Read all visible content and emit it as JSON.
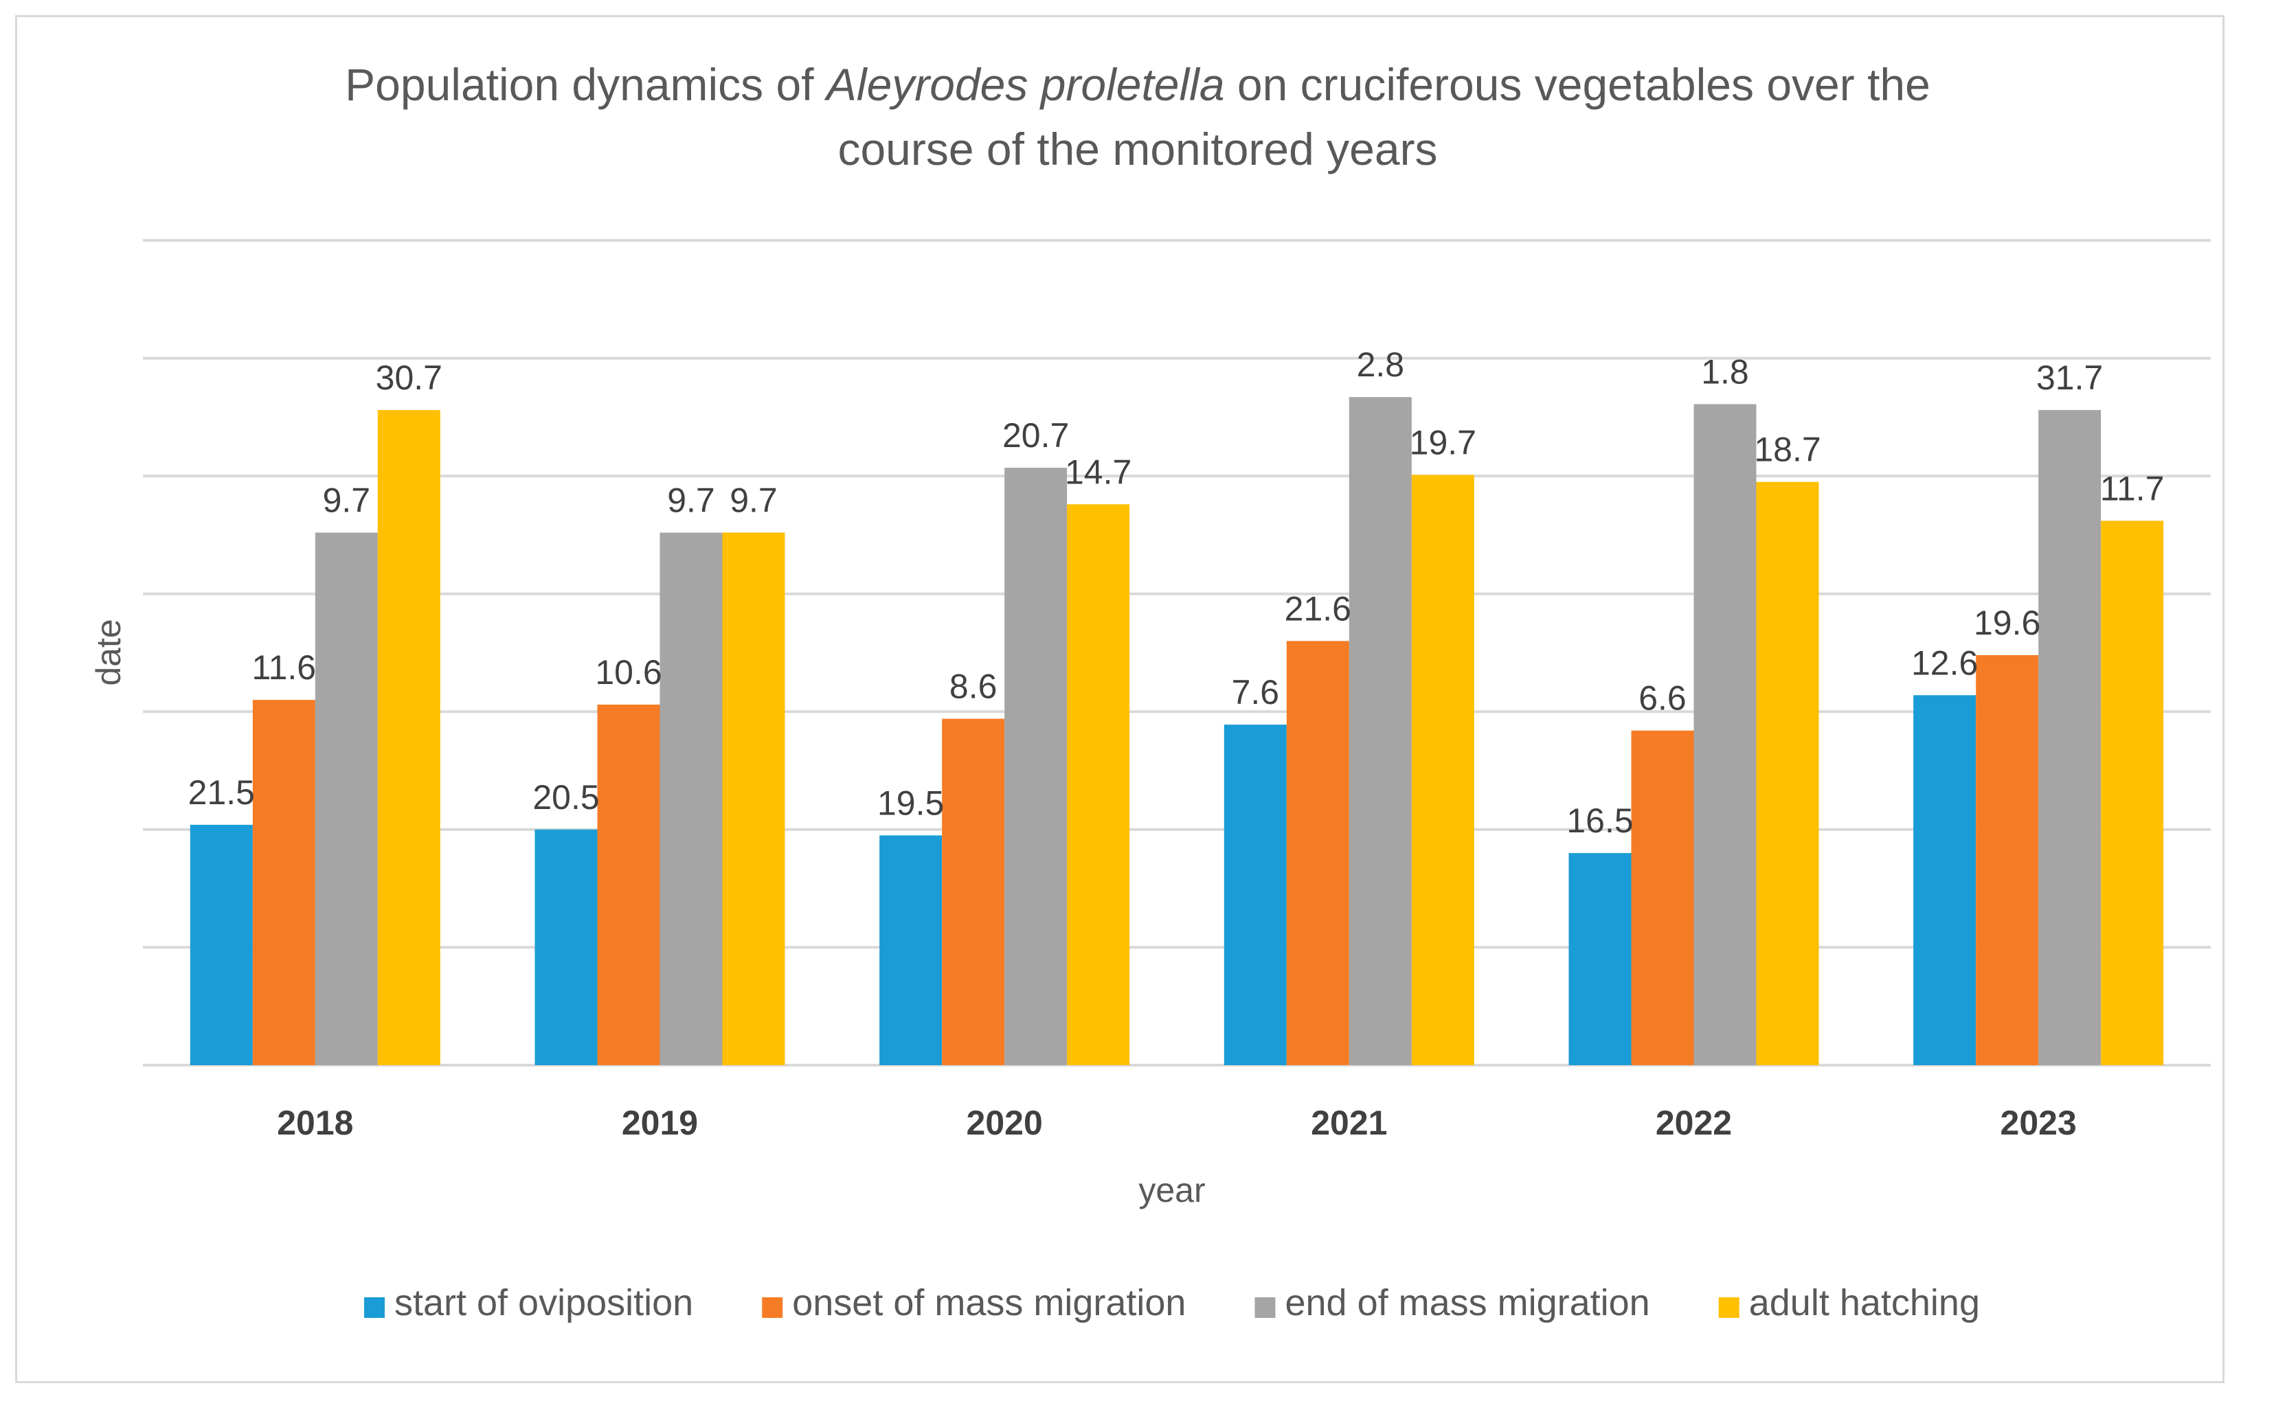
{
  "chart_data": {
    "type": "bar",
    "title_parts": [
      {
        "text": "Population dynamics of ",
        "italic": false
      },
      {
        "text": "Aleyrodes proletella",
        "italic": true
      },
      {
        "text": " on cruciferous vegetables over the",
        "italic": false
      }
    ],
    "title_line2": "course of the monitored years",
    "xlabel": "year",
    "ylabel": "date",
    "categories": [
      "2018",
      "2019",
      "2020",
      "2021",
      "2022",
      "2023"
    ],
    "ylim": [
      0,
      7
    ],
    "gridlines": 7,
    "series": [
      {
        "name": "start of oviposition",
        "color": "#1a9cd6",
        "values": [
          2.04,
          2.0,
          1.95,
          2.89,
          1.8,
          3.14
        ],
        "labels": [
          "21.5",
          "20.5",
          "19.5",
          "7.6",
          "16.5",
          "12.6"
        ]
      },
      {
        "name": "onset of mass migration",
        "color": "#f57c25",
        "values": [
          3.1,
          3.06,
          2.94,
          3.6,
          2.84,
          3.48
        ],
        "labels": [
          "11.6",
          "10.6",
          "8.6",
          "21.6",
          "6.6",
          "19.6"
        ]
      },
      {
        "name": "end of mass migration",
        "color": "#a5a5a5",
        "values": [
          4.52,
          4.52,
          5.07,
          5.67,
          5.61,
          5.56
        ],
        "labels": [
          "9.7",
          "9.7",
          "20.7",
          "2.8",
          "1.8",
          "31.7"
        ]
      },
      {
        "name": "adult hatching",
        "color": "#ffc000",
        "values": [
          5.56,
          4.52,
          4.76,
          5.01,
          4.95,
          4.62
        ],
        "labels": [
          "30.7",
          "9.7",
          "14.7",
          "19.7",
          "18.7",
          "11.7"
        ]
      }
    ]
  }
}
